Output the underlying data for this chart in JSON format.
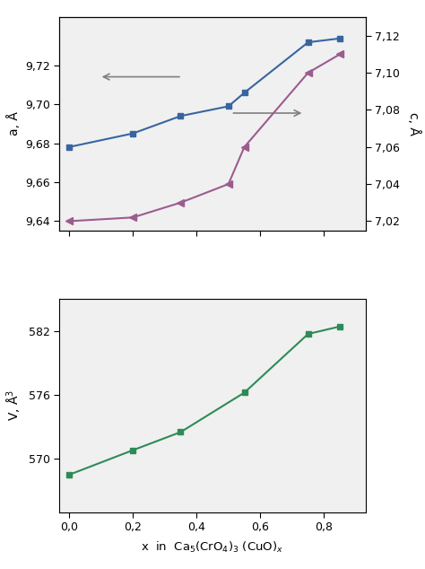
{
  "x_a": [
    0.0,
    0.2,
    0.35,
    0.5,
    0.55,
    0.75,
    0.85
  ],
  "a_values": [
    9.678,
    9.685,
    9.694,
    9.699,
    9.706,
    9.732,
    9.734
  ],
  "x_c": [
    0.0,
    0.2,
    0.35,
    0.5,
    0.55,
    0.75,
    0.85
  ],
  "c_values": [
    7.02,
    7.022,
    7.03,
    7.04,
    7.06,
    7.1,
    7.11
  ],
  "x_v": [
    0.0,
    0.2,
    0.35,
    0.55,
    0.75,
    0.85
  ],
  "v_values": [
    568.5,
    570.8,
    572.5,
    576.2,
    581.7,
    582.4
  ],
  "color_a": "#3865a0",
  "color_c": "#9b5c8f",
  "color_v": "#2e8b57",
  "xlabel": "x  in  Ca$_5$(CrO$_4$)$_3$ (CuO)$_x$",
  "ylabel_a": "a, Å",
  "ylabel_c": "c, Å",
  "ylabel_v": "V, Å$^3$",
  "a_ylim": [
    9.635,
    9.745
  ],
  "c_ylim": [
    7.015,
    7.13
  ],
  "v_ylim": [
    565,
    585
  ],
  "xlim": [
    -0.03,
    0.93
  ],
  "a_yticks": [
    9.64,
    9.66,
    9.68,
    9.7,
    9.72
  ],
  "c_yticks": [
    7.02,
    7.04,
    7.06,
    7.08,
    7.1,
    7.12
  ],
  "v_yticks": [
    570,
    576,
    582
  ],
  "xticks": [
    0.0,
    0.2,
    0.4,
    0.6,
    0.8
  ],
  "xtick_labels": [
    "0,0",
    "0,2",
    "0,4",
    "0,6",
    "0,8"
  ],
  "bg_color": "#f0f0f0"
}
